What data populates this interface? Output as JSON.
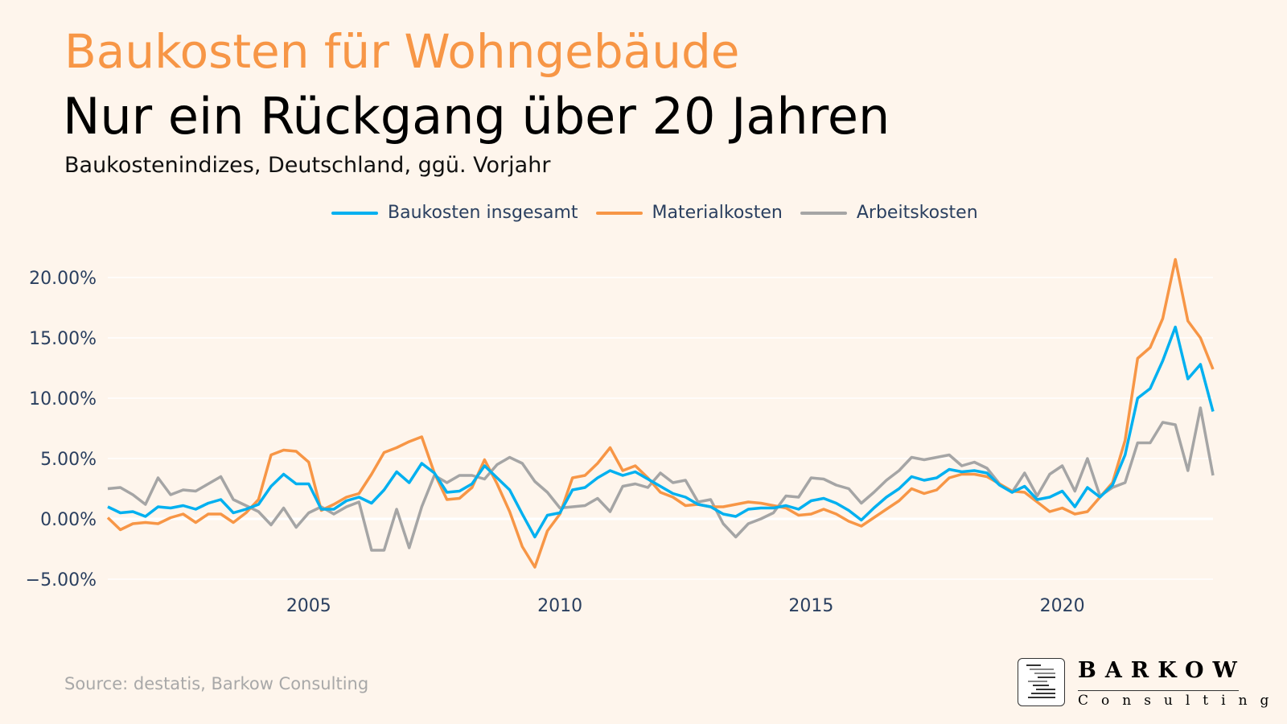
{
  "header": {
    "title": "Baukosten für Wohngebäude",
    "headline": "Nur ein Rückgang über 20 Jahren",
    "subtitle": "Baukostenindizes, Deutschland, ggü. Vorjahr"
  },
  "source": "Source: destatis, Barkow Consulting",
  "logo": {
    "name": "BARKOW",
    "sub": "Consulting"
  },
  "colors": {
    "background": "#FEF5EC",
    "title": "#F79646"
  },
  "chart_data": {
    "type": "line",
    "x_start": "2001 Q1",
    "x_frequency": "quarterly",
    "xlim": [
      2001,
      2023
    ],
    "ylim": [
      -6,
      23
    ],
    "x_ticks": [
      2005,
      2010,
      2015,
      2020
    ],
    "x_tick_labels": [
      "2005",
      "2010",
      "2015",
      "2020"
    ],
    "y_ticks": [
      -5,
      0,
      5,
      10,
      15,
      20
    ],
    "y_tick_labels": [
      "−5.00%",
      "0.00%",
      "5.00%",
      "10.00%",
      "15.00%",
      "20.00%"
    ],
    "grid": true,
    "legend_position": "top",
    "series": [
      {
        "name": "Baukosten insgesamt",
        "color": "#00B0F0",
        "values": [
          1.0,
          0.5,
          0.6,
          0.2,
          1.0,
          0.9,
          1.1,
          0.8,
          1.3,
          1.6,
          0.5,
          0.8,
          1.2,
          2.7,
          3.7,
          2.9,
          2.9,
          0.8,
          0.8,
          1.5,
          1.8,
          1.3,
          2.4,
          3.9,
          3.0,
          4.6,
          3.8,
          2.2,
          2.3,
          2.9,
          4.4,
          3.4,
          2.4,
          0.4,
          -1.5,
          0.3,
          0.5,
          2.4,
          2.6,
          3.4,
          4.0,
          3.6,
          3.9,
          3.3,
          2.7,
          2.1,
          1.8,
          1.2,
          1.0,
          0.4,
          0.2,
          0.8,
          0.9,
          0.9,
          1.1,
          0.8,
          1.5,
          1.7,
          1.3,
          0.7,
          -0.1,
          0.9,
          1.8,
          2.5,
          3.5,
          3.2,
          3.4,
          4.1,
          3.9,
          4.0,
          3.8,
          2.8,
          2.2,
          2.7,
          1.6,
          1.8,
          2.3,
          1.0,
          2.6,
          1.8,
          2.8,
          5.3,
          10.0,
          10.8,
          13.1,
          15.9,
          11.6,
          12.8,
          8.9
        ]
      },
      {
        "name": "Materialkosten",
        "color": "#F79646",
        "values": [
          0.1,
          -0.9,
          -0.4,
          -0.3,
          -0.4,
          0.1,
          0.4,
          -0.3,
          0.4,
          0.4,
          -0.3,
          0.5,
          1.6,
          5.3,
          5.7,
          5.6,
          4.7,
          0.7,
          1.2,
          1.8,
          2.1,
          3.7,
          5.5,
          5.9,
          6.4,
          6.8,
          3.8,
          1.6,
          1.7,
          2.6,
          4.9,
          2.9,
          0.6,
          -2.3,
          -4.0,
          -1.0,
          0.4,
          3.4,
          3.6,
          4.6,
          5.9,
          4.0,
          4.4,
          3.4,
          2.2,
          1.8,
          1.1,
          1.2,
          1.0,
          1.0,
          1.2,
          1.4,
          1.3,
          1.1,
          0.9,
          0.3,
          0.4,
          0.8,
          0.4,
          -0.2,
          -0.6,
          0.1,
          0.8,
          1.5,
          2.5,
          2.1,
          2.4,
          3.4,
          3.7,
          3.7,
          3.5,
          2.9,
          2.3,
          2.2,
          1.4,
          0.6,
          0.9,
          0.4,
          0.6,
          1.8,
          3.0,
          6.5,
          13.3,
          14.2,
          16.6,
          21.5,
          16.4,
          15.0,
          12.4
        ]
      },
      {
        "name": "Arbeitskosten",
        "color": "#A5A5A5",
        "values": [
          2.5,
          2.6,
          2.0,
          1.2,
          3.4,
          2.0,
          2.4,
          2.3,
          2.9,
          3.5,
          1.6,
          1.1,
          0.6,
          -0.5,
          0.9,
          -0.7,
          0.5,
          1.0,
          0.4,
          1.0,
          1.4,
          -2.6,
          -2.6,
          0.8,
          -2.4,
          1.0,
          3.6,
          3.0,
          3.6,
          3.6,
          3.3,
          4.5,
          5.1,
          4.6,
          3.1,
          2.2,
          0.9,
          1.0,
          1.1,
          1.7,
          0.6,
          2.7,
          2.9,
          2.6,
          3.8,
          3.0,
          3.2,
          1.4,
          1.6,
          -0.4,
          -1.5,
          -0.4,
          0.0,
          0.5,
          1.9,
          1.8,
          3.4,
          3.3,
          2.8,
          2.5,
          1.3,
          2.2,
          3.2,
          4.0,
          5.1,
          4.9,
          5.1,
          5.3,
          4.4,
          4.7,
          4.2,
          2.9,
          2.2,
          3.8,
          1.9,
          3.7,
          4.4,
          2.3,
          5.0,
          1.9,
          2.6,
          3.0,
          6.3,
          6.3,
          8.0,
          7.8,
          4.0,
          9.2,
          3.6
        ]
      }
    ]
  }
}
